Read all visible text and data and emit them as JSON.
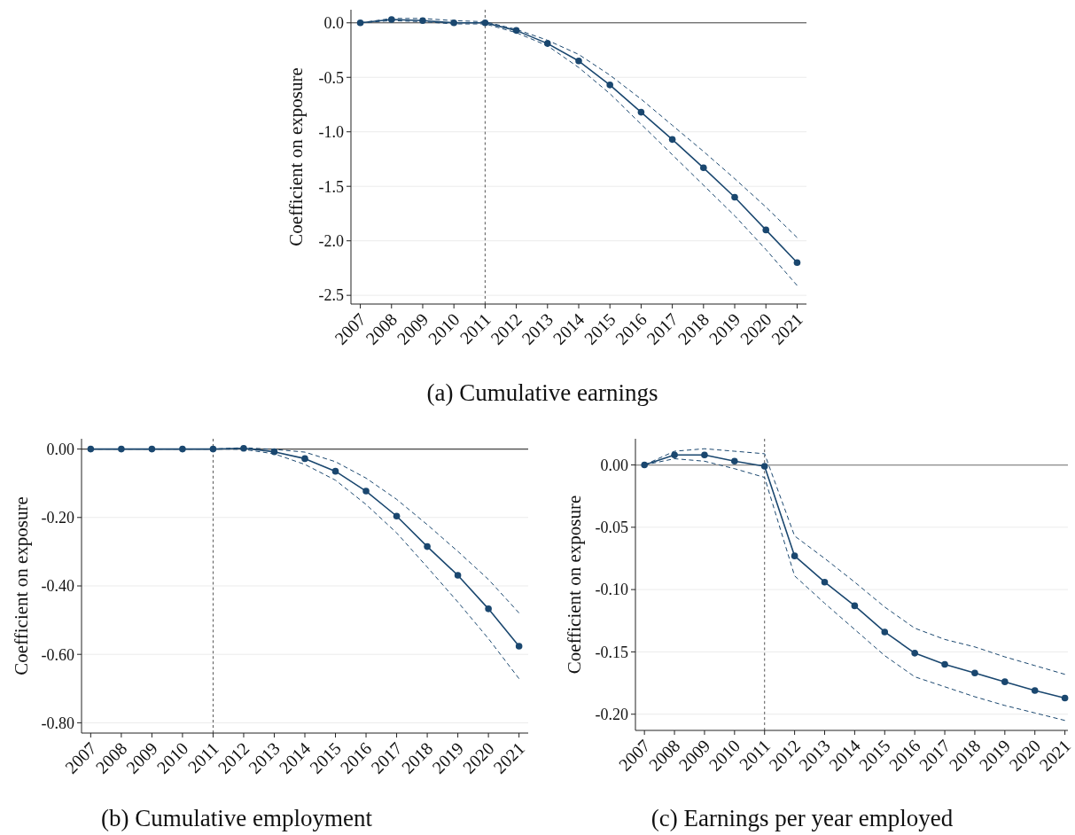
{
  "chart_data": [
    {
      "type": "line",
      "title": "(a) Cumulative earnings",
      "ylabel": "Coefficient on exposure",
      "x": [
        2007,
        2008,
        2009,
        2010,
        2011,
        2012,
        2013,
        2014,
        2015,
        2016,
        2017,
        2018,
        2019,
        2020,
        2021
      ],
      "series": [
        {
          "color": "#1a476f",
          "values": [
            0,
            0.03,
            0.02,
            0,
            0,
            -0.07,
            -0.19,
            -0.35,
            -0.57,
            -0.82,
            -1.07,
            -1.33,
            -1.6,
            -1.9,
            -2.2
          ]
        },
        {
          "color": "#1a476f",
          "line_style": "dashed",
          "marker": "none",
          "values": [
            0,
            0.04,
            0.04,
            0.02,
            0.01,
            -0.06,
            -0.16,
            -0.29,
            -0.48,
            -0.7,
            -0.94,
            -1.18,
            -1.43,
            -1.69,
            -1.97
          ]
        },
        {
          "color": "#1a476f",
          "line_style": "dashed",
          "marker": "none",
          "values": [
            0,
            0.02,
            0.01,
            -0.01,
            -0.01,
            -0.09,
            -0.21,
            -0.41,
            -0.65,
            -0.93,
            -1.21,
            -1.49,
            -1.77,
            -2.08,
            -2.41
          ]
        }
      ],
      "xlim": [
        2006.7,
        2021.3
      ],
      "xticks": [
        2007,
        2008,
        2009,
        2010,
        2011,
        2012,
        2013,
        2014,
        2015,
        2016,
        2017,
        2018,
        2019,
        2020,
        2021
      ],
      "ylim": [
        -2.58,
        0.12
      ],
      "yticks": [
        {
          "value": 0,
          "label": "0.0"
        },
        -0.5,
        {
          "value": -1,
          "label": "-1.0"
        },
        -1.5,
        {
          "value": -2,
          "label": "-2.0"
        },
        -2.5
      ],
      "grid": "y",
      "marker": "circle",
      "ref_lines": [
        {
          "axis": "y",
          "value": 0,
          "color": "#444444"
        },
        {
          "axis": "x",
          "value": 2011,
          "color": "#555555",
          "line_style": "dashed"
        }
      ]
    },
    {
      "type": "line",
      "title": "(b) Cumulative employment",
      "ylabel": "Coefficient on exposure",
      "x": [
        2007,
        2008,
        2009,
        2010,
        2011,
        2012,
        2013,
        2014,
        2015,
        2016,
        2017,
        2018,
        2019,
        2020,
        2021
      ],
      "series": [
        {
          "color": "#1a476f",
          "values": [
            0,
            0,
            0,
            0,
            0,
            0.002,
            -0.008,
            -0.028,
            -0.065,
            -0.123,
            -0.196,
            -0.285,
            -0.369,
            -0.467,
            -0.576
          ]
        },
        {
          "color": "#1a476f",
          "line_style": "dashed",
          "marker": "none",
          "values": [
            0,
            0,
            0,
            0,
            0,
            0.004,
            -0.001,
            -0.009,
            -0.037,
            -0.085,
            -0.147,
            -0.221,
            -0.299,
            -0.381,
            -0.479
          ]
        },
        {
          "color": "#1a476f",
          "line_style": "dashed",
          "marker": "none",
          "values": [
            0,
            0,
            0,
            0,
            0,
            -0.001,
            -0.014,
            -0.045,
            -0.091,
            -0.162,
            -0.245,
            -0.345,
            -0.447,
            -0.554,
            -0.671
          ]
        }
      ],
      "xlim": [
        2006.7,
        2021.3
      ],
      "xticks": [
        2007,
        2008,
        2009,
        2010,
        2011,
        2012,
        2013,
        2014,
        2015,
        2016,
        2017,
        2018,
        2019,
        2020,
        2021
      ],
      "ylim": [
        -0.83,
        0.03
      ],
      "yticks": [
        {
          "value": 0,
          "label": "0.00"
        },
        {
          "value": -0.2,
          "label": "-0.20"
        },
        {
          "value": -0.4,
          "label": "-0.40"
        },
        {
          "value": -0.6,
          "label": "-0.60"
        },
        {
          "value": -0.8,
          "label": "-0.80"
        }
      ],
      "grid": "y",
      "marker": "circle",
      "ref_lines": [
        {
          "axis": "y",
          "value": 0,
          "color": "#444444"
        },
        {
          "axis": "x",
          "value": 2011,
          "color": "#555555",
          "line_style": "dashed"
        }
      ]
    },
    {
      "type": "line",
      "title": "(c) Earnings per year employed",
      "ylabel": "Coefficient on exposure",
      "x": [
        2007,
        2008,
        2009,
        2010,
        2011,
        2012,
        2013,
        2014,
        2015,
        2016,
        2017,
        2018,
        2019,
        2020,
        2021
      ],
      "series": [
        {
          "color": "#1a476f",
          "values": [
            0,
            0.008,
            0.008,
            0.003,
            -0.001,
            -0.073,
            -0.094,
            -0.113,
            -0.134,
            -0.151,
            -0.16,
            -0.167,
            -0.174,
            -0.181,
            -0.187
          ]
        },
        {
          "color": "#1a476f",
          "line_style": "dashed",
          "marker": "none",
          "values": [
            0,
            0.011,
            0.013,
            0.011,
            0.009,
            -0.057,
            -0.075,
            -0.094,
            -0.114,
            -0.131,
            -0.14,
            -0.146,
            -0.154,
            -0.161,
            -0.168
          ]
        },
        {
          "color": "#1a476f",
          "line_style": "dashed",
          "marker": "none",
          "values": [
            0,
            0.005,
            0.003,
            -0.003,
            -0.01,
            -0.089,
            -0.111,
            -0.132,
            -0.153,
            -0.17,
            -0.178,
            -0.186,
            -0.193,
            -0.199,
            -0.205
          ]
        }
      ],
      "xlim": [
        2006.7,
        2021.1
      ],
      "xticks": [
        2007,
        2008,
        2009,
        2010,
        2011,
        2012,
        2013,
        2014,
        2015,
        2016,
        2017,
        2018,
        2019,
        2020,
        2021
      ],
      "ylim": [
        -0.213,
        0.021
      ],
      "yticks": [
        {
          "value": 0,
          "label": "0.00"
        },
        -0.05,
        {
          "value": -0.1,
          "label": "-0.10"
        },
        -0.15,
        {
          "value": -0.2,
          "label": "-0.20"
        }
      ],
      "grid": "y",
      "marker": "circle",
      "ref_lines": [
        {
          "axis": "y",
          "value": 0,
          "color": "#888888"
        },
        {
          "axis": "x",
          "value": 2011,
          "color": "#555555",
          "line_style": "dashed"
        }
      ]
    }
  ]
}
